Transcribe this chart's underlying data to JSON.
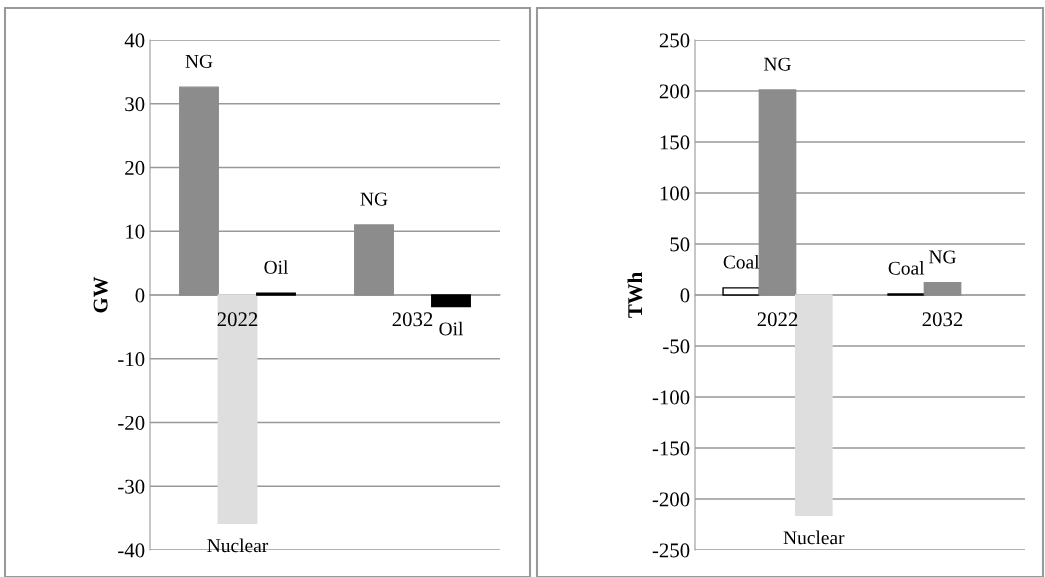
{
  "chart_data": [
    {
      "type": "bar",
      "ylabel": "GW",
      "categories": [
        "2022",
        "2032"
      ],
      "ylim": [
        -40,
        40
      ],
      "yticks": [
        -40,
        -30,
        -20,
        -10,
        0,
        10,
        20,
        30,
        40
      ],
      "grid": "y",
      "legend": false,
      "series": [
        {
          "name": "NG",
          "color": "#8c8c8c",
          "values": [
            32.6,
            11.0
          ]
        },
        {
          "name": "Nuclear",
          "color": "#dedede",
          "values": [
            -35.8,
            null
          ]
        },
        {
          "name": "Oil",
          "color": "#000000",
          "values": [
            0.3,
            -1.8
          ]
        }
      ]
    },
    {
      "type": "bar",
      "ylabel": "TWh",
      "categories": [
        "2022",
        "2032"
      ],
      "ylim": [
        -250,
        250
      ],
      "yticks": [
        -250,
        -200,
        -150,
        -100,
        -50,
        0,
        50,
        100,
        150,
        200,
        250
      ],
      "grid": "y",
      "legend": false,
      "series": [
        {
          "name": "Coal",
          "color": "#ffffff",
          "values": [
            7,
            1
          ]
        },
        {
          "name": "NG",
          "color": "#8c8c8c",
          "values": [
            201,
            12
          ]
        },
        {
          "name": "Nuclear",
          "color": "#dedede",
          "values": [
            -216,
            null
          ]
        }
      ]
    }
  ]
}
